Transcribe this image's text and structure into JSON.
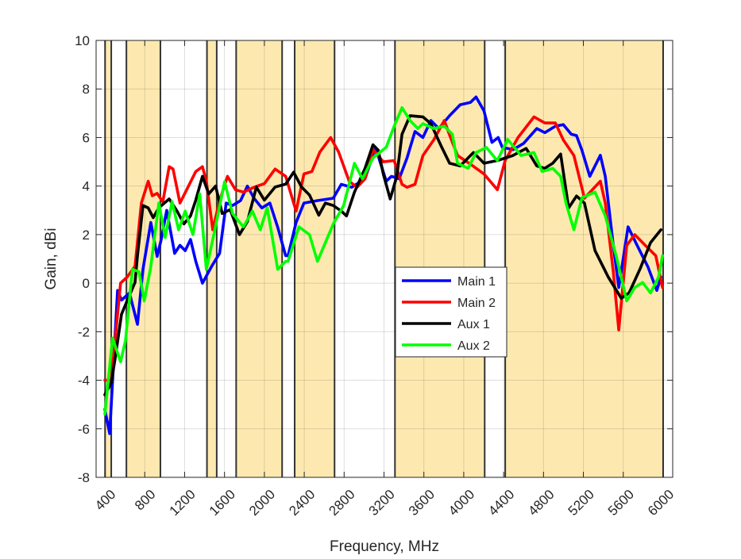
{
  "chart_data": {
    "type": "line",
    "title": "",
    "xlabel": "Frequency, MHz",
    "ylabel": "Gain, dBi",
    "xlim": [
      312,
      6096
    ],
    "ylim": [
      -8,
      10
    ],
    "xticks": [
      400,
      800,
      1200,
      1600,
      2000,
      2400,
      2800,
      3200,
      3600,
      4000,
      4400,
      4800,
      5200,
      5600,
      6000
    ],
    "xtick_labels": [
      "400",
      "800",
      "1200",
      "1600",
      "2000",
      "2400",
      "2800",
      "3200",
      "3600",
      "4000",
      "4400",
      "4800",
      "5200",
      "5600",
      "6000"
    ],
    "yticks": [
      -8,
      -6,
      -4,
      -2,
      0,
      2,
      4,
      6,
      8,
      10
    ],
    "ytick_labels": [
      "-8",
      "-6",
      "-4",
      "-2",
      "0",
      "2",
      "4",
      "6",
      "8",
      "10"
    ],
    "grid": true,
    "legend_position": "center-right",
    "band_color": "#fde9b0",
    "highlight_bands": [
      [
        402,
        464
      ],
      [
        616,
        957
      ],
      [
        1424,
        1522
      ],
      [
        1717,
        2178
      ],
      [
        2304,
        2704
      ],
      [
        3310,
        4210
      ],
      [
        4416,
        6000
      ]
    ],
    "series": [
      {
        "name": "Main 1",
        "color": "#0000ff",
        "x": [
          400,
          448,
          527,
          567,
          647,
          727,
          782,
          861,
          925,
          965,
          1020,
          1100,
          1153,
          1206,
          1259,
          1312,
          1379,
          1472,
          1551,
          1617,
          1681,
          1761,
          1830,
          1896,
          1975,
          2055,
          2134,
          2214,
          2238,
          2318,
          2397,
          2532,
          2691,
          2771,
          2875,
          3010,
          3114,
          3222,
          3274,
          3352,
          3431,
          3511,
          3590,
          3670,
          3750,
          3858,
          3964,
          4068,
          4123,
          4203,
          4283,
          4346,
          4386,
          4494,
          4601,
          4733,
          4813,
          4919,
          4999,
          5078,
          5131,
          5185,
          5264,
          5370,
          5420,
          5500,
          5555,
          5648,
          5739,
          5847,
          5937,
          5978
        ],
        "y": [
          -5.2,
          -6.2,
          -0.3,
          -0.7,
          -0.4,
          -1.7,
          0.57,
          2.5,
          1.1,
          1.8,
          3.0,
          1.23,
          1.56,
          1.34,
          1.8,
          0.9,
          0,
          0.7,
          1.23,
          3.3,
          3.2,
          3.4,
          4.0,
          3.5,
          3.1,
          3.3,
          2.3,
          1.13,
          1.13,
          2.5,
          3.3,
          3.4,
          3.5,
          4.07,
          3.95,
          4.3,
          5.6,
          4.2,
          4.4,
          4.3,
          5.16,
          6.25,
          6.0,
          6.7,
          6.37,
          6.9,
          7.35,
          7.45,
          7.67,
          7.1,
          5.8,
          6.0,
          5.6,
          5.5,
          5.76,
          6.37,
          6.2,
          6.47,
          6.53,
          6.14,
          6.08,
          5.48,
          4.4,
          5.27,
          4.4,
          1.56,
          -0.18,
          2.32,
          1.56,
          0.68,
          -0.3,
          0.25
        ]
      },
      {
        "name": "Main 2",
        "color": "#ff0000",
        "x": [
          400,
          464,
          557,
          623,
          702,
          766,
          835,
          875,
          925,
          981,
          1045,
          1084,
          1153,
          1233,
          1312,
          1379,
          1418,
          1482,
          1551,
          1630,
          1710,
          1790,
          1896,
          2000,
          2108,
          2214,
          2318,
          2397,
          2477,
          2556,
          2665,
          2745,
          2850,
          2930,
          3010,
          3089,
          3193,
          3302,
          3381,
          3431,
          3511,
          3590,
          3699,
          3805,
          3858,
          3938,
          4068,
          4203,
          4338,
          4415,
          4545,
          4705,
          4813,
          4919,
          4999,
          5105,
          5211,
          5290,
          5370,
          5420,
          5500,
          5555,
          5635,
          5715,
          5820,
          5926,
          5994
        ],
        "y": [
          -4.0,
          -4.0,
          0,
          0.25,
          0.7,
          3.3,
          4.2,
          3.6,
          3.7,
          3.35,
          4.8,
          4.7,
          3.3,
          3.95,
          4.6,
          4.8,
          4.2,
          2.2,
          3.4,
          4.4,
          3.85,
          3.75,
          3.95,
          4.1,
          4.7,
          4.4,
          2.97,
          4.5,
          4.6,
          5.4,
          6.0,
          5.4,
          4.2,
          3.95,
          4.3,
          5.5,
          5.0,
          5.05,
          4.07,
          3.95,
          4.07,
          5.26,
          5.9,
          6.7,
          6.1,
          5.26,
          4.9,
          4.5,
          3.85,
          5.05,
          6.0,
          6.85,
          6.6,
          6.6,
          5.9,
          5.26,
          3.5,
          3.85,
          4.2,
          3.3,
          0.47,
          -1.93,
          1.56,
          2.0,
          1.56,
          1.13,
          -0.18
        ]
      },
      {
        "name": "Aux 1",
        "color": "#000000",
        "x": [
          400,
          464,
          503,
          567,
          623,
          702,
          727,
          782,
          835,
          885,
          941,
          1045,
          1124,
          1193,
          1259,
          1312,
          1379,
          1442,
          1511,
          1577,
          1657,
          1750,
          1830,
          1920,
          2000,
          2108,
          2214,
          2293,
          2373,
          2453,
          2546,
          2612,
          2691,
          2771,
          2824,
          2904,
          3010,
          3089,
          3142,
          3193,
          3262,
          3328,
          3381,
          3461,
          3590,
          3670,
          3779,
          3858,
          3964,
          4097,
          4203,
          4336,
          4494,
          4626,
          4733,
          4813,
          4892,
          4972,
          5052,
          5131,
          5211,
          5317,
          5450,
          5580,
          5659,
          5768,
          5874,
          5978
        ],
        "y": [
          -4.6,
          -4.1,
          -3.1,
          -1.28,
          -0.73,
          0.03,
          1.13,
          3.2,
          3.1,
          2.7,
          3.1,
          3.47,
          2.97,
          2.44,
          2.77,
          3.42,
          4.4,
          3.68,
          4.0,
          2.87,
          3.03,
          2.0,
          2.54,
          3.96,
          3.42,
          3.96,
          4.08,
          4.57,
          3.96,
          3.63,
          2.8,
          3.3,
          3.2,
          2.97,
          2.77,
          3.75,
          4.73,
          5.7,
          5.48,
          4.5,
          3.47,
          4.4,
          6.14,
          6.9,
          6.85,
          6.57,
          5.6,
          4.94,
          4.83,
          5.38,
          4.94,
          5.05,
          5.26,
          5.55,
          4.83,
          4.73,
          4.94,
          5.32,
          3.1,
          3.59,
          3.3,
          1.34,
          0.25,
          -0.62,
          -0.4,
          0.58,
          1.67,
          2.2
        ]
      },
      {
        "name": "Aux 2",
        "color": "#00ff00",
        "x": [
          400,
          477,
          557,
          607,
          676,
          742,
          795,
          861,
          941,
          1005,
          1074,
          1140,
          1206,
          1283,
          1352,
          1418,
          1498,
          1601,
          1681,
          1790,
          1880,
          1959,
          2029,
          2134,
          2214,
          2238,
          2347,
          2453,
          2532,
          2612,
          2691,
          2795,
          2904,
          2984,
          3089,
          3222,
          3302,
          3381,
          3461,
          3540,
          3590,
          3699,
          3805,
          3885,
          3938,
          4044,
          4123,
          4227,
          4336,
          4441,
          4574,
          4705,
          4786,
          4892,
          4972,
          5025,
          5105,
          5185,
          5317,
          5420,
          5529,
          5635,
          5715,
          5794,
          5874,
          5954,
          5994
        ],
        "y": [
          -5.4,
          -2.26,
          -3.24,
          -2.37,
          0.57,
          0.47,
          -0.73,
          0.68,
          3.3,
          1.88,
          3.36,
          2.2,
          2.97,
          2.0,
          3.68,
          0.57,
          2.1,
          4.18,
          2.87,
          2.32,
          2.97,
          2.2,
          3.1,
          0.57,
          0.9,
          0.9,
          2.32,
          2.0,
          0.9,
          1.67,
          2.44,
          3.2,
          4.94,
          4.3,
          5.16,
          5.6,
          6.47,
          7.23,
          6.7,
          6.37,
          6.57,
          6.37,
          6.47,
          6.14,
          4.94,
          4.73,
          5.38,
          5.59,
          5.05,
          5.92,
          5.26,
          5.38,
          4.6,
          4.73,
          4.4,
          3.3,
          2.2,
          3.52,
          3.75,
          2.77,
          1.13,
          -0.73,
          -0.18,
          0.03,
          -0.4,
          0.25,
          1.13
        ]
      }
    ]
  }
}
